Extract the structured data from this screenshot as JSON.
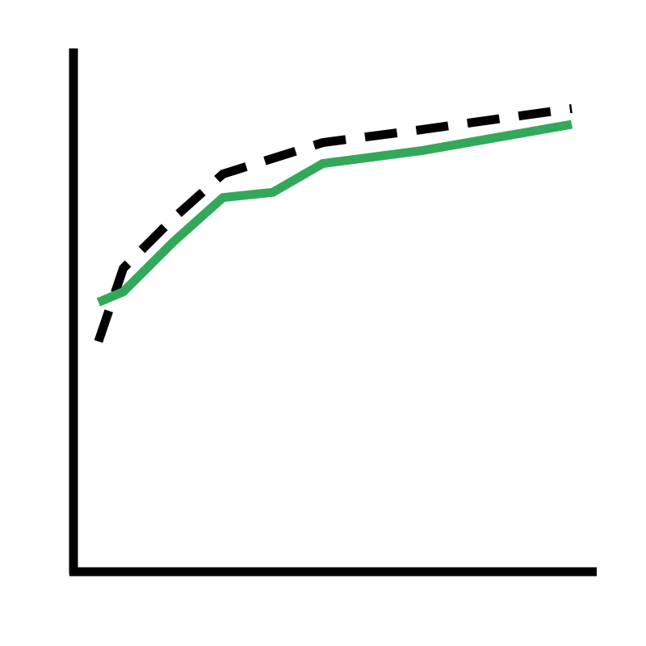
{
  "chart_data": {
    "type": "line",
    "title": "",
    "xlabel": "",
    "ylabel": "",
    "xlim": [
      0,
      21
    ],
    "ylim": [
      0,
      20
    ],
    "grid": false,
    "legend": "none",
    "x": [
      1,
      2,
      4,
      6,
      8,
      10,
      14,
      20
    ],
    "series": [
      {
        "style": "dashed",
        "color": "#000000",
        "values": [
          8.8,
          11.6,
          13.5,
          15.2,
          15.8,
          16.4,
          16.9,
          17.7
        ]
      },
      {
        "style": "solid",
        "color": "#34a85a",
        "values": [
          10.3,
          10.7,
          12.6,
          14.3,
          14.5,
          15.6,
          16.1,
          17.1
        ]
      }
    ]
  }
}
